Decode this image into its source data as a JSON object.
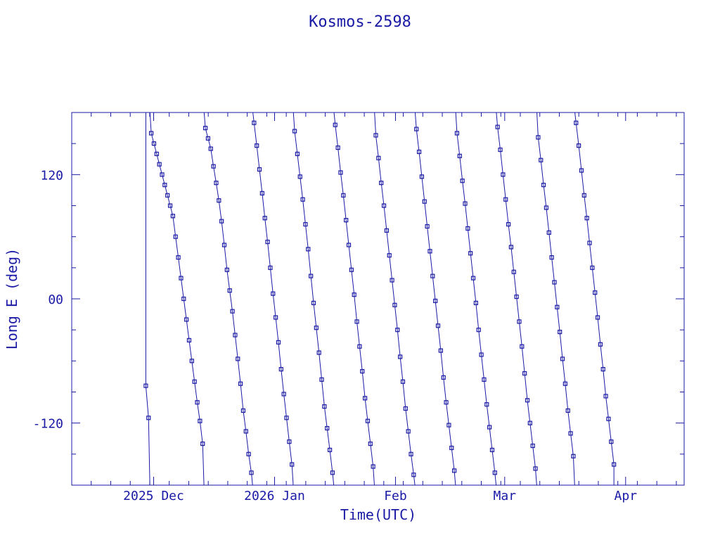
{
  "chart_data": {
    "type": "scatter",
    "title": "Kosmos-2598",
    "xlabel": "Time(UTC)",
    "ylabel": "Long E (deg)",
    "ylim": [
      -180,
      180
    ],
    "x_range": [
      "2025-11-10",
      "2026-04-16"
    ],
    "yticks": [
      -120,
      0,
      120
    ],
    "ytick_labels": [
      "-120",
      "00",
      "120"
    ],
    "xticks": [
      {
        "date": "2025-12-01",
        "label": "2025 Dec"
      },
      {
        "date": "2026-01-01",
        "label": "2026 Jan"
      },
      {
        "date": "2026-02-01",
        "label": "Feb"
      },
      {
        "date": "2026-03-01",
        "label": "Mar"
      },
      {
        "date": "2026-04-01",
        "label": "Apr"
      }
    ],
    "grid": false,
    "legend": "none",
    "data_start": "2025-11-29",
    "data_end": "2026-03-29",
    "pass_longitudes": [
      -84,
      -115,
      160,
      150,
      140,
      130,
      120,
      110,
      100,
      90,
      80,
      60,
      40,
      20,
      0,
      -20,
      -40,
      -60,
      -80,
      -100,
      -118,
      -140,
      165,
      155,
      145,
      128,
      112,
      95,
      75,
      52,
      28,
      8,
      -12,
      -35,
      -58,
      -82,
      -108,
      -128,
      -150,
      -168,
      170,
      148,
      125,
      102,
      78,
      55,
      30,
      5,
      -18,
      -42,
      -68,
      -92,
      -115,
      -138,
      -160,
      162,
      140,
      118,
      96,
      72,
      48,
      22,
      -4,
      -28,
      -52,
      -78,
      -104,
      -125,
      -146,
      -168,
      168,
      146,
      122,
      100,
      76,
      52,
      28,
      4,
      -22,
      -46,
      -70,
      -96,
      -118,
      -140,
      -162,
      158,
      136,
      112,
      90,
      66,
      42,
      18,
      -6,
      -30,
      -56,
      -80,
      -106,
      -128,
      -150,
      -170,
      164,
      142,
      118,
      94,
      70,
      46,
      22,
      -2,
      -26,
      -50,
      -76,
      -100,
      -122,
      -144,
      -166,
      160,
      138,
      114,
      92,
      68,
      44,
      20,
      -4,
      -30,
      -54,
      -78,
      -102,
      -124,
      -146,
      -168,
      166,
      144,
      120,
      96,
      72,
      50,
      26,
      2,
      -22,
      -46,
      -72,
      -98,
      -120,
      -142,
      -164,
      156,
      134,
      110,
      88,
      64,
      40,
      16,
      -8,
      -32,
      -58,
      -82,
      -108,
      -130,
      -152,
      170,
      148,
      124,
      100,
      78,
      54,
      30,
      6,
      -18,
      -44,
      -68,
      -94,
      -116,
      -138,
      -160
    ]
  }
}
